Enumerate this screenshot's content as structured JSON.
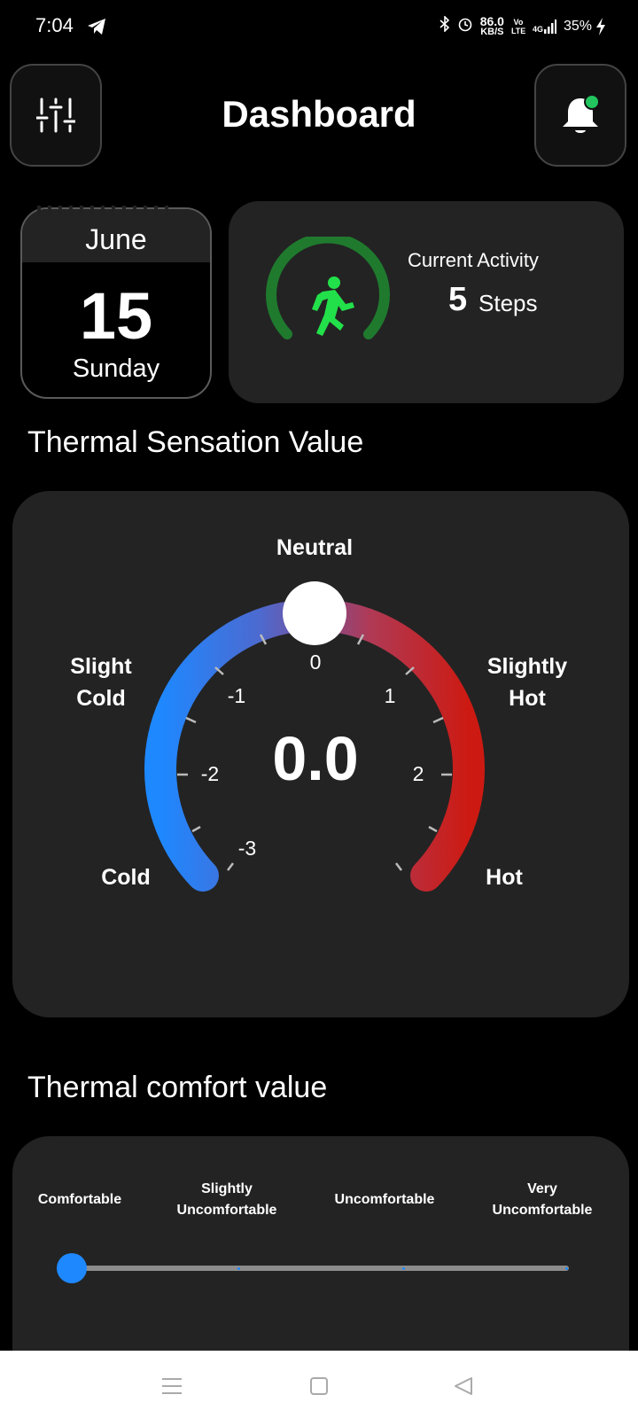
{
  "status_bar": {
    "time": "7:04",
    "network_speed_value": "86.0",
    "network_speed_unit": "KB/S",
    "volte": "Vo LTE",
    "signal": "4G",
    "battery": "35%"
  },
  "header": {
    "title": "Dashboard",
    "filter_icon": "sliders-icon",
    "notification_icon": "bell-icon",
    "notification_dot_color": "#22c55e"
  },
  "calendar": {
    "month": "June",
    "day": "15",
    "weekday": "Sunday"
  },
  "activity": {
    "label": "Current Activity",
    "value": "5",
    "unit": "Steps",
    "icon": "running-person-icon",
    "accent_color": "#22e04a",
    "ring_color": "#1f7a2e"
  },
  "thermal_sensation": {
    "title": "Thermal Sensation Value",
    "value": "0.0",
    "labels": {
      "neutral": "Neutral",
      "slight_cold_line1": "Slight",
      "slight_cold_line2": "Cold",
      "slightly_hot_line1": "Slightly",
      "slightly_hot_line2": "Hot",
      "cold": "Cold",
      "hot": "Hot"
    },
    "ticks": {
      "m3": "-3",
      "m2": "-2",
      "m1": "-1",
      "zero": "0",
      "p1": "1",
      "p2": "2"
    },
    "scale_min": -3,
    "scale_max": 3,
    "current": 0,
    "cold_color": "#1e88ff",
    "hot_color": "#cc1a12"
  },
  "thermal_comfort": {
    "title": "Thermal comfort value",
    "options": {
      "o1": "Comfortable",
      "o2_line1": "Slightly",
      "o2_line2": "Uncomfortable",
      "o3": "Uncomfortable",
      "o4_line1": "Very",
      "o4_line2": "Uncomfortable"
    },
    "selected_index": 0,
    "thumb_color": "#1e88ff"
  },
  "nav_bar": {
    "menu_icon": "menu-icon",
    "home_icon": "square-home-icon",
    "back_icon": "back-triangle-icon"
  }
}
